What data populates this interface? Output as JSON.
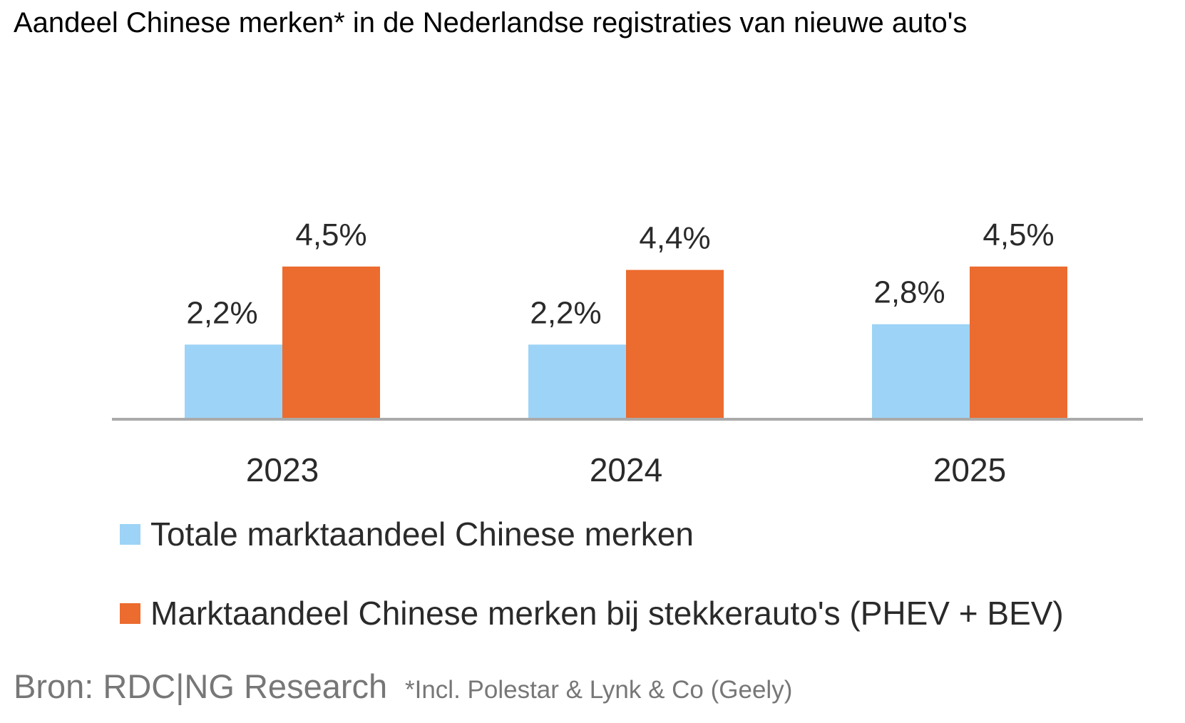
{
  "chart_data": {
    "type": "bar",
    "title": "Aandeel Chinese merken* in de Nederlandse registraties van nieuwe auto's",
    "categories": [
      "2023",
      "2024",
      "2025"
    ],
    "series": [
      {
        "name": "Totale marktaandeel Chinese merken",
        "values": [
          2.2,
          2.2,
          2.8
        ],
        "labels": [
          "2,2%",
          "2,2%",
          "2,8%"
        ],
        "color": "#9dd3f6"
      },
      {
        "name": "Marktaandeel Chinese merken bij stekkerauto's (PHEV + BEV)",
        "values": [
          4.5,
          4.4,
          4.5
        ],
        "labels": [
          "4,5%",
          "4,4%",
          "4,5%"
        ],
        "color": "#ec6b2e"
      }
    ],
    "xlabel": "",
    "ylabel": "",
    "ylim": [
      0,
      4.5
    ],
    "grid": false,
    "legend_position": "bottom",
    "source": "Bron: RDC|NG Research",
    "footnote": "*Incl. Polestar & Lynk & Co (Geely)"
  }
}
